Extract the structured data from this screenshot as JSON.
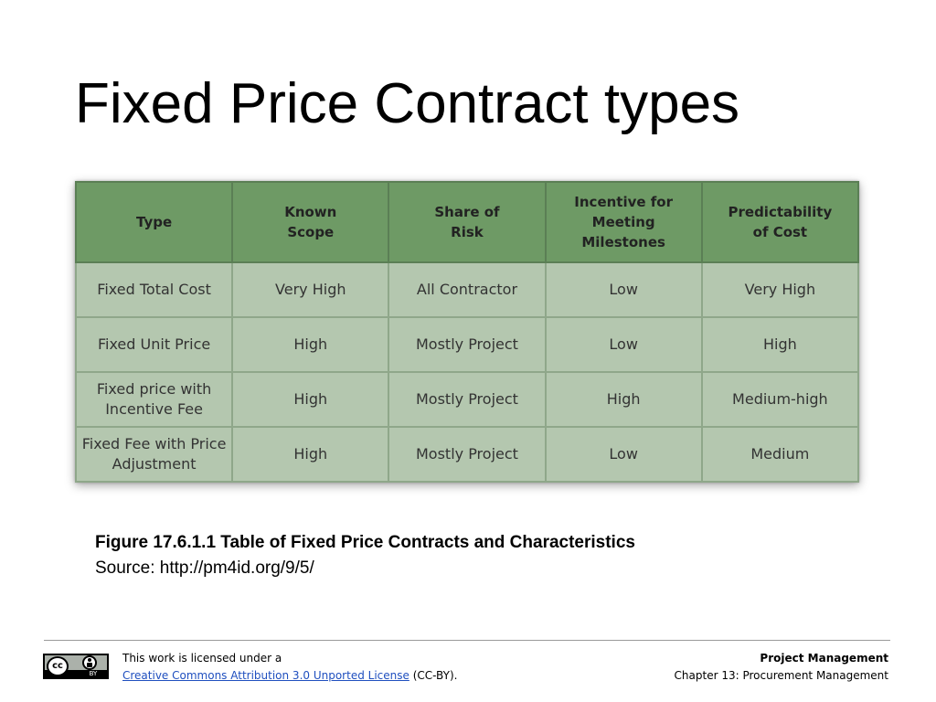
{
  "title": "Fixed Price Contract types",
  "table": {
    "headers": [
      "Type",
      "Known\nScope",
      "Share of\nRisk",
      "Incentive for\nMeeting\nMilestones",
      "Predictability\nof Cost"
    ],
    "rows": [
      [
        "Fixed Total Cost",
        "Very High",
        "All Contractor",
        "Low",
        "Very High"
      ],
      [
        "Fixed Unit Price",
        "High",
        "Mostly Project",
        "Low",
        "High"
      ],
      [
        "Fixed price with\nIncentive Fee",
        "High",
        "Mostly Project",
        "High",
        "Medium-high"
      ],
      [
        "Fixed Fee with Price\nAdjustment",
        "High",
        "Mostly Project",
        "Low",
        "Medium"
      ]
    ],
    "colors": {
      "header_bg": "#6e9a65",
      "cell_bg": "#b4c7af"
    }
  },
  "caption": {
    "title": "Figure 17.6.1.1 Table of Fixed Price Contracts and Characteristics",
    "source": "Source: http://pm4id.org/9/5/"
  },
  "footer": {
    "badge": {
      "icon": "cc-by-icon",
      "cc_text": "cc",
      "by_text": "BY"
    },
    "license_prefix": "This work is licensed under a",
    "license_link": "Creative Commons Attribution 3.0 Unported License",
    "license_suffix": " (CC-BY).",
    "course_title": "Project Management",
    "chapter": "Chapter 13: Procurement Management"
  }
}
